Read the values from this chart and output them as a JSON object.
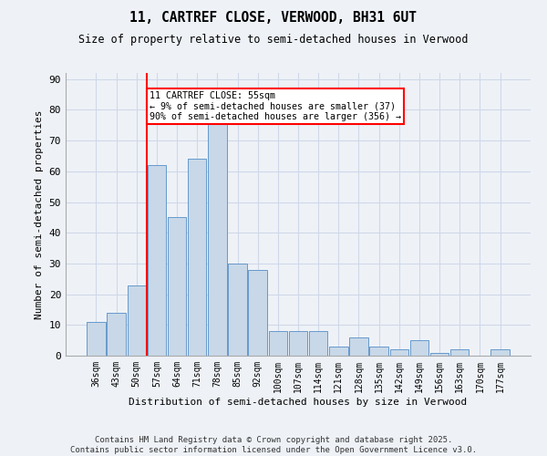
{
  "title1": "11, CARTREF CLOSE, VERWOOD, BH31 6UT",
  "title2": "Size of property relative to semi-detached houses in Verwood",
  "xlabel": "Distribution of semi-detached houses by size in Verwood",
  "ylabel": "Number of semi-detached properties",
  "categories": [
    "36sqm",
    "43sqm",
    "50sqm",
    "57sqm",
    "64sqm",
    "71sqm",
    "78sqm",
    "85sqm",
    "92sqm",
    "100sqm",
    "107sqm",
    "114sqm",
    "121sqm",
    "128sqm",
    "135sqm",
    "142sqm",
    "149sqm",
    "156sqm",
    "163sqm",
    "170sqm",
    "177sqm"
  ],
  "values": [
    11,
    14,
    23,
    62,
    45,
    64,
    76,
    30,
    28,
    8,
    8,
    8,
    3,
    6,
    3,
    2,
    5,
    1,
    2,
    0,
    2
  ],
  "bar_color": "#c8d8e8",
  "bar_edge_color": "#6699cc",
  "vline_x": 2.5,
  "vline_color": "red",
  "annotation_title": "11 CARTREF CLOSE: 55sqm",
  "annotation_line1": "← 9% of semi-detached houses are smaller (37)",
  "annotation_line2": "90% of semi-detached houses are larger (356) →",
  "annotation_box_color": "white",
  "annotation_box_edge_color": "red",
  "ylim": [
    0,
    92
  ],
  "yticks": [
    0,
    10,
    20,
    30,
    40,
    50,
    60,
    70,
    80,
    90
  ],
  "footer1": "Contains HM Land Registry data © Crown copyright and database right 2025.",
  "footer2": "Contains public sector information licensed under the Open Government Licence v3.0.",
  "bg_color": "#eef2f7",
  "grid_color": "#d0d8e8"
}
